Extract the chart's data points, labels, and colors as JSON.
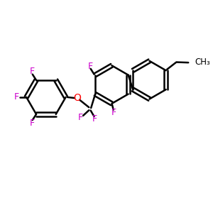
{
  "background_color": "#ffffff",
  "bond_color": "#000000",
  "F_color": "#cc00cc",
  "O_color": "#ff0000",
  "bond_width": 1.8,
  "figsize": [
    3.0,
    3.0
  ],
  "dpi": 100,
  "xlim": [
    0,
    10
  ],
  "ylim": [
    0,
    10
  ]
}
